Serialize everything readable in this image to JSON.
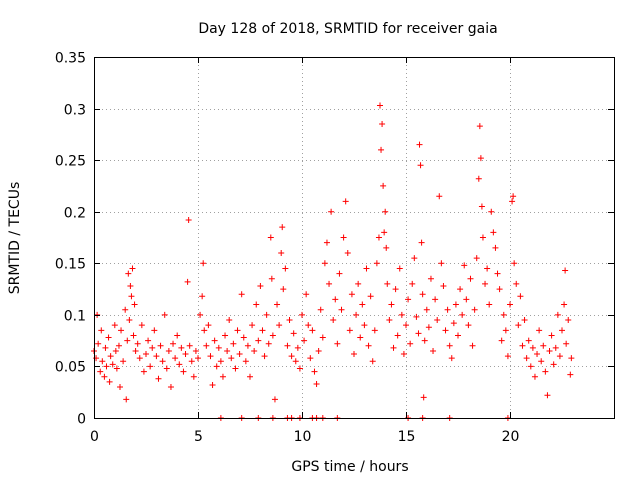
{
  "chart_data": {
    "type": "scatter",
    "title": "Day 128 of 2018, SRMTID for receiver gaia",
    "xlabel": "GPS time / hours",
    "ylabel": "SRMTID / TECUs",
    "xlim": [
      0,
      25
    ],
    "ylim": [
      0,
      0.35
    ],
    "x_ticks": [
      0,
      5,
      10,
      15,
      20
    ],
    "x_tick_labels": [
      "0",
      "5",
      "10",
      "15",
      "20"
    ],
    "y_ticks": [
      0,
      0.05,
      0.1,
      0.15,
      0.2,
      0.25,
      0.3,
      0.35
    ],
    "y_tick_labels": [
      "0",
      "0.05",
      "0.1",
      "0.15",
      "0.2",
      "0.25",
      "0.3",
      "0.35"
    ],
    "grid": true,
    "marker": "+",
    "color": "#ff0000",
    "series": [
      {
        "name": "SRMTID",
        "points": [
          [
            0.0,
            0.065
          ],
          [
            0.1,
            0.058
          ],
          [
            0.15,
            0.1
          ],
          [
            0.2,
            0.072
          ],
          [
            0.3,
            0.045
          ],
          [
            0.35,
            0.085
          ],
          [
            0.4,
            0.055
          ],
          [
            0.5,
            0.04
          ],
          [
            0.55,
            0.068
          ],
          [
            0.6,
            0.05
          ],
          [
            0.7,
            0.078
          ],
          [
            0.75,
            0.035
          ],
          [
            0.8,
            0.06
          ],
          [
            0.9,
            0.052
          ],
          [
            1.0,
            0.09
          ],
          [
            1.05,
            0.065
          ],
          [
            1.1,
            0.048
          ],
          [
            1.2,
            0.07
          ],
          [
            1.25,
            0.03
          ],
          [
            1.3,
            0.085
          ],
          [
            1.4,
            0.055
          ],
          [
            1.5,
            0.105
          ],
          [
            1.55,
            0.018
          ],
          [
            1.6,
            0.075
          ],
          [
            1.65,
            0.14
          ],
          [
            1.7,
            0.095
          ],
          [
            1.75,
            0.128
          ],
          [
            1.8,
            0.118
          ],
          [
            1.85,
            0.145
          ],
          [
            1.9,
            0.08
          ],
          [
            1.95,
            0.11
          ],
          [
            2.0,
            0.065
          ],
          [
            2.1,
            0.072
          ],
          [
            2.2,
            0.058
          ],
          [
            2.3,
            0.09
          ],
          [
            2.4,
            0.045
          ],
          [
            2.5,
            0.062
          ],
          [
            2.6,
            0.075
          ],
          [
            2.7,
            0.05
          ],
          [
            2.8,
            0.068
          ],
          [
            2.9,
            0.085
          ],
          [
            3.0,
            0.06
          ],
          [
            3.1,
            0.038
          ],
          [
            3.2,
            0.07
          ],
          [
            3.3,
            0.055
          ],
          [
            3.4,
            0.1
          ],
          [
            3.5,
            0.048
          ],
          [
            3.6,
            0.065
          ],
          [
            3.7,
            0.03
          ],
          [
            3.8,
            0.072
          ],
          [
            3.9,
            0.058
          ],
          [
            4.0,
            0.08
          ],
          [
            4.1,
            0.052
          ],
          [
            4.2,
            0.068
          ],
          [
            4.3,
            0.045
          ],
          [
            4.4,
            0.062
          ],
          [
            4.5,
            0.132
          ],
          [
            4.55,
            0.192
          ],
          [
            4.6,
            0.07
          ],
          [
            4.7,
            0.055
          ],
          [
            4.8,
            0.04
          ],
          [
            4.9,
            0.065
          ],
          [
            5.0,
            0.058
          ],
          [
            5.1,
            0.1
          ],
          [
            5.2,
            0.118
          ],
          [
            5.25,
            0.15
          ],
          [
            5.3,
            0.085
          ],
          [
            5.4,
            0.07
          ],
          [
            5.5,
            0.09
          ],
          [
            5.6,
            0.06
          ],
          [
            5.7,
            0.032
          ],
          [
            5.8,
            0.075
          ],
          [
            5.9,
            0.05
          ],
          [
            6.0,
            0.068
          ],
          [
            6.1,
            0.055
          ],
          [
            6.2,
            0.04
          ],
          [
            6.3,
            0.08
          ],
          [
            6.4,
            0.065
          ],
          [
            6.5,
            0.095
          ],
          [
            6.6,
            0.058
          ],
          [
            6.7,
            0.072
          ],
          [
            6.8,
            0.048
          ],
          [
            6.9,
            0.085
          ],
          [
            7.0,
            0.062
          ],
          [
            7.1,
            0.12
          ],
          [
            7.2,
            0.078
          ],
          [
            7.3,
            0.055
          ],
          [
            7.4,
            0.07
          ],
          [
            7.5,
            0.04
          ],
          [
            7.6,
            0.09
          ],
          [
            7.7,
            0.065
          ],
          [
            7.8,
            0.11
          ],
          [
            7.9,
            0.075
          ],
          [
            8.0,
            0.128
          ],
          [
            8.1,
            0.085
          ],
          [
            8.2,
            0.06
          ],
          [
            8.3,
            0.1
          ],
          [
            8.4,
            0.072
          ],
          [
            8.5,
            0.175
          ],
          [
            8.55,
            0.135
          ],
          [
            8.6,
            0.08
          ],
          [
            8.7,
            0.018
          ],
          [
            8.8,
            0.11
          ],
          [
            8.9,
            0.09
          ],
          [
            9.0,
            0.16
          ],
          [
            9.05,
            0.185
          ],
          [
            9.1,
            0.125
          ],
          [
            9.2,
            0.145
          ],
          [
            9.3,
            0.07
          ],
          [
            9.4,
            0.095
          ],
          [
            9.5,
            0.06
          ],
          [
            9.6,
            0.082
          ],
          [
            9.7,
            0.055
          ],
          [
            9.8,
            0.068
          ],
          [
            9.9,
            0.048
          ],
          [
            10.0,
            0.1
          ],
          [
            10.1,
            0.075
          ],
          [
            10.2,
            0.12
          ],
          [
            10.3,
            0.09
          ],
          [
            10.4,
            0.058
          ],
          [
            10.5,
            0.085
          ],
          [
            10.6,
            0.045
          ],
          [
            10.7,
            0.033
          ],
          [
            10.8,
            0.065
          ],
          [
            10.9,
            0.105
          ],
          [
            11.0,
            0.078
          ],
          [
            11.1,
            0.15
          ],
          [
            11.2,
            0.17
          ],
          [
            11.3,
            0.13
          ],
          [
            11.4,
            0.2
          ],
          [
            11.5,
            0.095
          ],
          [
            11.6,
            0.115
          ],
          [
            11.7,
            0.072
          ],
          [
            11.8,
            0.14
          ],
          [
            11.9,
            0.105
          ],
          [
            12.0,
            0.175
          ],
          [
            12.1,
            0.21
          ],
          [
            12.2,
            0.16
          ],
          [
            12.3,
            0.085
          ],
          [
            12.4,
            0.12
          ],
          [
            12.5,
            0.062
          ],
          [
            12.6,
            0.1
          ],
          [
            12.7,
            0.13
          ],
          [
            12.8,
            0.078
          ],
          [
            12.9,
            0.11
          ],
          [
            13.0,
            0.09
          ],
          [
            13.1,
            0.145
          ],
          [
            13.2,
            0.07
          ],
          [
            13.3,
            0.118
          ],
          [
            13.4,
            0.055
          ],
          [
            13.5,
            0.085
          ],
          [
            13.6,
            0.15
          ],
          [
            13.7,
            0.175
          ],
          [
            13.75,
            0.303
          ],
          [
            13.8,
            0.26
          ],
          [
            13.85,
            0.285
          ],
          [
            13.9,
            0.225
          ],
          [
            13.95,
            0.18
          ],
          [
            14.0,
            0.2
          ],
          [
            14.05,
            0.165
          ],
          [
            14.1,
            0.13
          ],
          [
            14.2,
            0.095
          ],
          [
            14.3,
            0.11
          ],
          [
            14.4,
            0.068
          ],
          [
            14.5,
            0.125
          ],
          [
            14.6,
            0.08
          ],
          [
            14.7,
            0.145
          ],
          [
            14.8,
            0.1
          ],
          [
            14.9,
            0.062
          ],
          [
            15.0,
            0.09
          ],
          [
            15.1,
            0.115
          ],
          [
            15.2,
            0.072
          ],
          [
            15.3,
            0.13
          ],
          [
            15.4,
            0.155
          ],
          [
            15.5,
            0.098
          ],
          [
            15.6,
            0.082
          ],
          [
            15.65,
            0.265
          ],
          [
            15.7,
            0.245
          ],
          [
            15.75,
            0.17
          ],
          [
            15.8,
            0.12
          ],
          [
            15.85,
            0.02
          ],
          [
            15.9,
            0.075
          ],
          [
            16.0,
            0.105
          ],
          [
            16.1,
            0.088
          ],
          [
            16.2,
            0.135
          ],
          [
            16.3,
            0.065
          ],
          [
            16.4,
            0.115
          ],
          [
            16.5,
            0.095
          ],
          [
            16.6,
            0.215
          ],
          [
            16.7,
            0.15
          ],
          [
            16.8,
            0.128
          ],
          [
            16.9,
            0.085
          ],
          [
            17.0,
            0.105
          ],
          [
            17.1,
            0.07
          ],
          [
            17.2,
            0.058
          ],
          [
            17.3,
            0.092
          ],
          [
            17.4,
            0.11
          ],
          [
            17.5,
            0.08
          ],
          [
            17.6,
            0.125
          ],
          [
            17.7,
            0.1
          ],
          [
            17.8,
            0.148
          ],
          [
            17.9,
            0.115
          ],
          [
            18.0,
            0.09
          ],
          [
            18.1,
            0.135
          ],
          [
            18.2,
            0.07
          ],
          [
            18.3,
            0.105
          ],
          [
            18.4,
            0.155
          ],
          [
            18.5,
            0.232
          ],
          [
            18.55,
            0.283
          ],
          [
            18.6,
            0.252
          ],
          [
            18.65,
            0.205
          ],
          [
            18.7,
            0.175
          ],
          [
            18.8,
            0.13
          ],
          [
            18.9,
            0.145
          ],
          [
            19.0,
            0.11
          ],
          [
            19.1,
            0.2
          ],
          [
            19.2,
            0.18
          ],
          [
            19.3,
            0.165
          ],
          [
            19.4,
            0.14
          ],
          [
            19.5,
            0.125
          ],
          [
            19.6,
            0.075
          ],
          [
            19.7,
            0.1
          ],
          [
            19.8,
            0.085
          ],
          [
            19.9,
            0.06
          ],
          [
            20.0,
            0.11
          ],
          [
            20.1,
            0.21
          ],
          [
            20.15,
            0.215
          ],
          [
            20.2,
            0.15
          ],
          [
            20.3,
            0.13
          ],
          [
            20.4,
            0.09
          ],
          [
            20.5,
            0.118
          ],
          [
            20.6,
            0.07
          ],
          [
            20.7,
            0.095
          ],
          [
            20.8,
            0.058
          ],
          [
            20.9,
            0.075
          ],
          [
            21.0,
            0.05
          ],
          [
            21.1,
            0.068
          ],
          [
            21.2,
            0.04
          ],
          [
            21.3,
            0.062
          ],
          [
            21.4,
            0.085
          ],
          [
            21.5,
            0.055
          ],
          [
            21.6,
            0.07
          ],
          [
            21.7,
            0.045
          ],
          [
            21.8,
            0.022
          ],
          [
            21.9,
            0.065
          ],
          [
            22.0,
            0.08
          ],
          [
            22.1,
            0.052
          ],
          [
            22.2,
            0.068
          ],
          [
            22.3,
            0.1
          ],
          [
            22.4,
            0.06
          ],
          [
            22.5,
            0.085
          ],
          [
            22.6,
            0.11
          ],
          [
            22.65,
            0.143
          ],
          [
            22.7,
            0.072
          ],
          [
            22.8,
            0.095
          ],
          [
            22.9,
            0.042
          ],
          [
            22.95,
            0.058
          ],
          [
            6.1,
            0.0
          ],
          [
            7.1,
            0.0
          ],
          [
            7.9,
            0.0
          ],
          [
            8.6,
            0.0
          ],
          [
            9.3,
            0.0
          ],
          [
            9.5,
            0.0
          ],
          [
            9.9,
            0.0
          ],
          [
            10.5,
            0.0
          ],
          [
            10.7,
            0.0
          ],
          [
            11.0,
            0.0
          ],
          [
            11.7,
            0.0
          ],
          [
            15.1,
            0.0
          ],
          [
            15.8,
            0.0
          ],
          [
            17.1,
            0.0
          ],
          [
            19.9,
            0.0
          ]
        ]
      }
    ]
  }
}
